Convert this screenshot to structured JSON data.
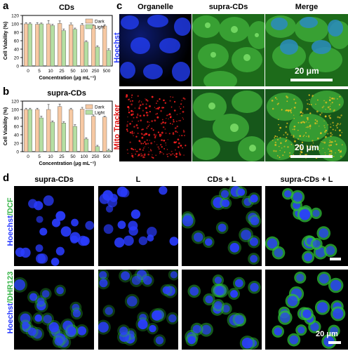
{
  "panels": {
    "a": "a",
    "b": "b",
    "c": "c",
    "d": "d"
  },
  "chart_data": [
    {
      "type": "bar",
      "title": "CDs",
      "categories": [
        "0",
        "5",
        "10",
        "25",
        "50",
        "100",
        "250",
        "500"
      ],
      "series": [
        {
          "name": "Dark",
          "values": [
            100,
            99,
            100,
            101,
            98,
            97,
            96,
            95
          ],
          "errors": [
            3,
            4,
            8,
            6,
            4,
            4,
            2,
            3
          ],
          "color": "#f7c9a3"
        },
        {
          "name": "Light",
          "values": [
            100,
            100,
            96,
            84,
            87,
            57,
            45,
            37
          ],
          "errors": [
            3,
            2,
            3,
            4,
            3,
            3,
            3,
            4
          ],
          "color": "#b5dfa2"
        }
      ],
      "xlabel": "Concentration (μg mL⁻¹)",
      "ylabel": "Cell Viability (%)",
      "ylim": [
        0,
        120
      ],
      "yticks": [
        0,
        20,
        40,
        60,
        80,
        100,
        120
      ],
      "legend_position": "top-right"
    },
    {
      "type": "bar",
      "title": "supra-CDs",
      "categories": [
        "0",
        "5",
        "10",
        "25",
        "50",
        "100",
        "250",
        "500"
      ],
      "series": [
        {
          "name": "Dark",
          "values": [
            100,
            100,
            100,
            107,
            100,
            101,
            84,
            82
          ],
          "errors": [
            3,
            3,
            12,
            6,
            3,
            4,
            3,
            2
          ],
          "color": "#f7c9a3"
        },
        {
          "name": "Light",
          "values": [
            100,
            80,
            70,
            68,
            60,
            30,
            12,
            3
          ],
          "errors": [
            3,
            4,
            3,
            3,
            4,
            3,
            3,
            3
          ],
          "color": "#b5dfa2"
        }
      ],
      "xlabel": "Concentration (μg mL⁻¹)",
      "ylabel": "Cell Viability (%)",
      "ylim": [
        0,
        120
      ],
      "yticks": [
        0,
        20,
        40,
        60,
        80,
        100,
        120
      ],
      "legend_position": "top-right"
    }
  ],
  "panel_c": {
    "col_headers": [
      "Organelle",
      "supra-CDs",
      "Merge"
    ],
    "row_labels": [
      "Hoechst",
      "Mito Tracker"
    ],
    "scale_bar": "20 μm"
  },
  "panel_d": {
    "col_headers": [
      "supra-CDs",
      "L",
      "CDs + L",
      "supra-CDs + L"
    ],
    "row1_label": {
      "part1": "Hoechst",
      "part2": "/DCF"
    },
    "row2_label": {
      "part1": "Hoechst",
      "part2": "/DHR123"
    },
    "scale_bar": "20 μm"
  },
  "colors": {
    "blue": "#2a3cff",
    "green": "#39b54a",
    "red": "#e01010",
    "dark": "#f7c9a3",
    "light": "#b5dfa2"
  }
}
